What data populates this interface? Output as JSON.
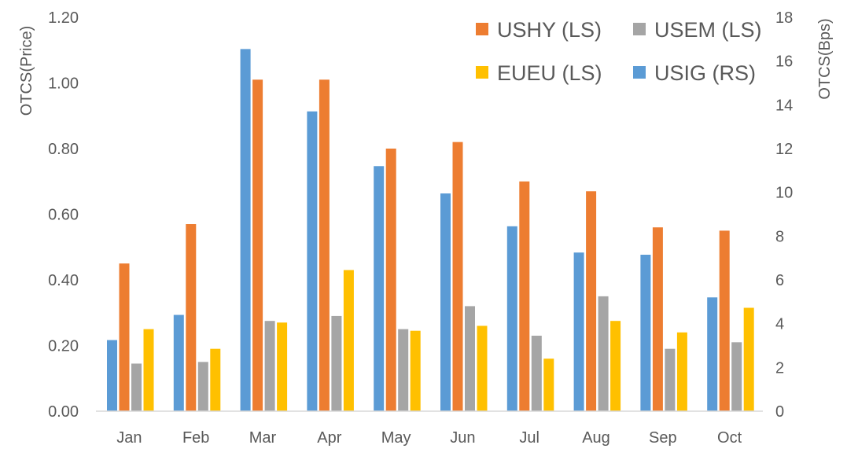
{
  "chart_data": {
    "type": "bar",
    "categories": [
      "Jan",
      "Feb",
      "Mar",
      "Apr",
      "May",
      "Jun",
      "Jul",
      "Aug",
      "Sep",
      "Oct"
    ],
    "series": [
      {
        "name": "USIG (RS)",
        "axis": "right",
        "color": "#5b9bd5",
        "values": [
          3.25,
          4.4,
          16.55,
          13.7,
          11.2,
          9.95,
          8.45,
          7.25,
          7.15,
          5.2
        ]
      },
      {
        "name": "USHY (LS)",
        "axis": "left",
        "color": "#ed7d31",
        "values": [
          0.45,
          0.57,
          1.01,
          1.01,
          0.8,
          0.82,
          0.7,
          0.67,
          0.56,
          0.55
        ]
      },
      {
        "name": "USEM (LS)",
        "axis": "left",
        "color": "#a5a5a5",
        "values": [
          0.145,
          0.15,
          0.275,
          0.29,
          0.25,
          0.32,
          0.23,
          0.35,
          0.19,
          0.21
        ]
      },
      {
        "name": "EUEU (LS)",
        "axis": "left",
        "color": "#ffc000",
        "values": [
          0.25,
          0.19,
          0.27,
          0.43,
          0.245,
          0.26,
          0.16,
          0.275,
          0.24,
          0.315
        ]
      }
    ],
    "legend_order": [
      "USHY (LS)",
      "USEM (LS)",
      "EUEU (LS)",
      "USIG (RS)"
    ],
    "legend_position": "top-right",
    "ylabel_left": "OTCS(Price)",
    "ylabel_right": "OTCS(Bps)",
    "ylim_left": [
      0,
      1.2
    ],
    "ylim_right": [
      0,
      18
    ],
    "yticks_left": [
      "0.00",
      "0.20",
      "0.40",
      "0.60",
      "0.80",
      "1.00",
      "1.20"
    ],
    "yticks_right": [
      "0",
      "2",
      "4",
      "6",
      "8",
      "10",
      "12",
      "14",
      "16",
      "18"
    ],
    "grid": false
  }
}
